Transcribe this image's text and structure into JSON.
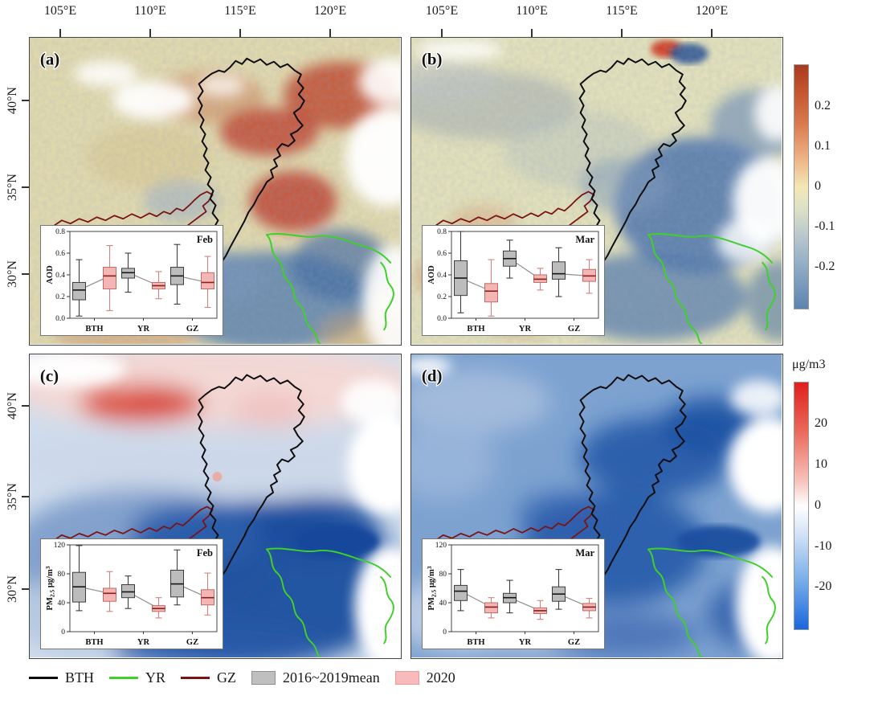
{
  "figure": {
    "axes": {
      "top_ticks": [
        "105°E",
        "110°E",
        "115°E",
        "120°E"
      ],
      "left_ticks": [
        "40°N",
        "35°N",
        "30°N"
      ]
    },
    "colorbars": [
      {
        "id": "aod",
        "unit": "",
        "tick_labels": [
          "0.2",
          "0.1",
          "0",
          "-0.1",
          "-0.2"
        ]
      },
      {
        "id": "pm25",
        "unit": "μg/m3",
        "tick_labels": [
          "20",
          "10",
          "0",
          "-10",
          "-20"
        ]
      }
    ],
    "legend": {
      "items": [
        {
          "label": "BTH",
          "type": "line",
          "color": "#0d0d0d"
        },
        {
          "label": "YR",
          "type": "line",
          "color": "#3fd02a"
        },
        {
          "label": "GZ",
          "type": "line",
          "color": "#7a1414"
        },
        {
          "label": "2016~2019mean",
          "type": "box",
          "fill": "#bfbfbf",
          "stroke": "#8f8f8f"
        },
        {
          "label": "2020",
          "type": "box",
          "fill": "#f8baba",
          "stroke": "#e89b9b"
        }
      ]
    }
  },
  "chart_data": [
    {
      "type": "boxplot",
      "panel": "a",
      "panel_label": "(a)",
      "title": "Feb",
      "ylabel_parts": [
        {
          "t": "AOD"
        }
      ],
      "ylim": [
        0,
        0.8
      ],
      "yticks": [
        0,
        0.2,
        0.4,
        0.6,
        0.8
      ],
      "ytick_labels": [
        "0.0",
        "0.2",
        "0.4",
        "0.6",
        "0.8"
      ],
      "categories": [
        "BTH",
        "YR",
        "GZ"
      ],
      "series": [
        {
          "name": "2016~2019mean",
          "fill": "#bcbcbc",
          "stroke": "#3c3c3c",
          "median_color": "#151515",
          "whisker_color": "#3c3c3c",
          "boxes": [
            [
              0.02,
              0.17,
              0.26,
              0.33,
              0.54
            ],
            [
              0.24,
              0.37,
              0.42,
              0.46,
              0.6
            ],
            [
              0.13,
              0.31,
              0.39,
              0.47,
              0.68
            ]
          ]
        },
        {
          "name": "2020",
          "fill": "#f4b6b4",
          "stroke": "#c06a66",
          "median_color": "#8a1f1c",
          "whisker_color": "#d2827f",
          "boxes": [
            [
              0.07,
              0.27,
              0.39,
              0.47,
              0.67
            ],
            [
              0.18,
              0.27,
              0.3,
              0.33,
              0.43
            ],
            [
              0.1,
              0.27,
              0.33,
              0.42,
              0.57
            ]
          ]
        }
      ]
    },
    {
      "type": "boxplot",
      "panel": "b",
      "panel_label": "(b)",
      "title": "Mar",
      "ylabel_parts": [
        {
          "t": "AOD"
        }
      ],
      "ylim": [
        0,
        0.8
      ],
      "yticks": [
        0,
        0.2,
        0.4,
        0.6,
        0.8
      ],
      "ytick_labels": [
        "0.0",
        "0.2",
        "0.4",
        "0.6",
        "0.8"
      ],
      "categories": [
        "BTH",
        "YR",
        "GZ"
      ],
      "series": [
        {
          "name": "2016~2019mean",
          "fill": "#bcbcbc",
          "stroke": "#3c3c3c",
          "median_color": "#151515",
          "whisker_color": "#3c3c3c",
          "boxes": [
            [
              0.05,
              0.21,
              0.37,
              0.53,
              0.8
            ],
            [
              0.37,
              0.48,
              0.55,
              0.62,
              0.72
            ],
            [
              0.2,
              0.36,
              0.41,
              0.52,
              0.65
            ]
          ]
        },
        {
          "name": "2020",
          "fill": "#f4b6b4",
          "stroke": "#c06a66",
          "median_color": "#8a1f1c",
          "whisker_color": "#d2827f",
          "boxes": [
            [
              0.02,
              0.15,
              0.25,
              0.32,
              0.54
            ],
            [
              0.26,
              0.33,
              0.36,
              0.4,
              0.46
            ],
            [
              0.23,
              0.34,
              0.39,
              0.45,
              0.54
            ]
          ]
        }
      ]
    },
    {
      "type": "boxplot",
      "panel": "c",
      "panel_label": "(c)",
      "title": "Feb",
      "ylabel_parts": [
        {
          "t": "PM"
        },
        {
          "t": "2.5",
          "sub": true
        },
        {
          "t": " μg/m"
        },
        {
          "t": "3",
          "sup": true
        }
      ],
      "ylim": [
        0,
        120
      ],
      "yticks": [
        0,
        40,
        80,
        120
      ],
      "ytick_labels": [
        "0",
        "40",
        "80",
        "120"
      ],
      "categories": [
        "BTH",
        "YR",
        "GZ"
      ],
      "series": [
        {
          "name": "2016~2019mean",
          "fill": "#bcbcbc",
          "stroke": "#3c3c3c",
          "median_color": "#151515",
          "whisker_color": "#3c3c3c",
          "boxes": [
            [
              29,
              41,
              62,
              82,
              119
            ],
            [
              32,
              47,
              55,
              65,
              77
            ],
            [
              37,
              48,
              66,
              85,
              113
            ]
          ]
        },
        {
          "name": "2020",
          "fill": "#f4b6b4",
          "stroke": "#c06a66",
          "median_color": "#8a1f1c",
          "whisker_color": "#d2827f",
          "boxes": [
            [
              28,
              42,
              53,
              60,
              83
            ],
            [
              19,
              28,
              32,
              36,
              47
            ],
            [
              23,
              37,
              47,
              58,
              81
            ]
          ]
        }
      ]
    },
    {
      "type": "boxplot",
      "panel": "d",
      "panel_label": "(d)",
      "title": "Mar",
      "ylabel_parts": [
        {
          "t": "PM"
        },
        {
          "t": "2.5",
          "sub": true
        },
        {
          "t": " μg/m"
        },
        {
          "t": "3",
          "sup": true
        }
      ],
      "ylim": [
        0,
        120
      ],
      "yticks": [
        0,
        40,
        80,
        120
      ],
      "ytick_labels": [
        "0",
        "40",
        "80",
        "120"
      ],
      "categories": [
        "BTH",
        "YR",
        "GZ"
      ],
      "series": [
        {
          "name": "2016~2019mean",
          "fill": "#bcbcbc",
          "stroke": "#3c3c3c",
          "median_color": "#151515",
          "whisker_color": "#3c3c3c",
          "boxes": [
            [
              29,
              43,
              56,
              64,
              86
            ],
            [
              26,
              40,
              47,
              53,
              71
            ],
            [
              31,
              42,
              52,
              62,
              86
            ]
          ]
        },
        {
          "name": "2020",
          "fill": "#f4b6b4",
          "stroke": "#c06a66",
          "median_color": "#8a1f1c",
          "whisker_color": "#d2827f",
          "boxes": [
            [
              19,
              26,
              34,
              40,
              47
            ],
            [
              17,
              25,
              29,
              33,
              43
            ],
            [
              19,
              29,
              34,
              39,
              46
            ]
          ]
        }
      ]
    }
  ]
}
